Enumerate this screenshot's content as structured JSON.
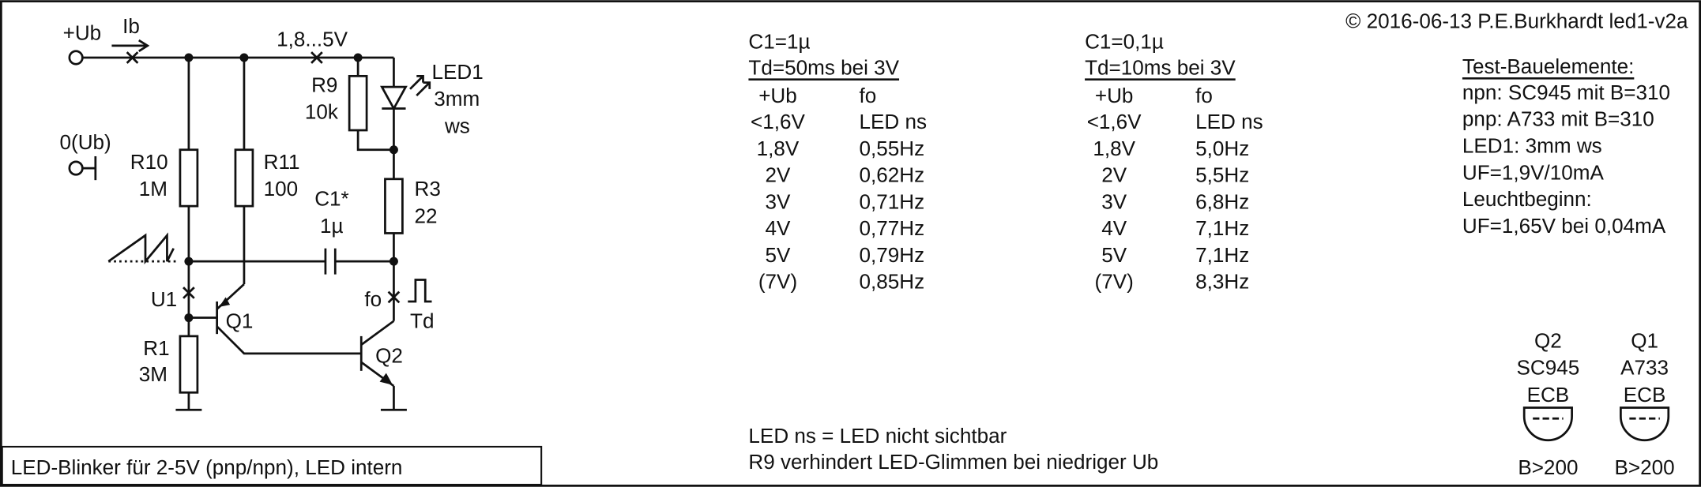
{
  "header": {
    "copyright": "© 2016-06-13 P.E.Burkhardt led1-v2a"
  },
  "title": "LED-Blinker für 2-5V (pnp/npn), LED intern",
  "circuit": {
    "labels": [
      "+Ub",
      "Ib",
      "1,8...5V",
      "LED1",
      "3mm",
      "ws",
      "R9",
      "10k",
      "0(Ub)",
      "R10",
      "1M",
      "R11",
      "100",
      "C1*",
      "1µ",
      "R3",
      "22",
      "U1",
      "Q1",
      "fo",
      "Td",
      "R1",
      "3M",
      "Q2"
    ]
  },
  "tables": [
    {
      "capacitor": "C1=1µ",
      "delay": "Td=50ms bei 3V",
      "columns": [
        "+Ub",
        "fo"
      ],
      "rows": [
        [
          "<1,6V",
          "LED ns"
        ],
        [
          "1,8V",
          "0,55Hz"
        ],
        [
          "2V",
          "0,62Hz"
        ],
        [
          "3V",
          "0,71Hz"
        ],
        [
          "4V",
          "0,77Hz"
        ],
        [
          "5V",
          "0,79Hz"
        ],
        [
          "(7V)",
          "0,85Hz"
        ]
      ]
    },
    {
      "capacitor": "C1=0,1µ",
      "delay": "Td=10ms bei 3V",
      "columns": [
        "+Ub",
        "fo"
      ],
      "rows": [
        [
          "<1,6V",
          "LED ns"
        ],
        [
          "1,8V",
          "5,0Hz"
        ],
        [
          "2V",
          "5,5Hz"
        ],
        [
          "3V",
          "6,8Hz"
        ],
        [
          "4V",
          "7,1Hz"
        ],
        [
          "5V",
          "7,1Hz"
        ],
        [
          "(7V)",
          "8,3Hz"
        ]
      ]
    }
  ],
  "components": {
    "heading": "Test-Bauelemente:",
    "lines": [
      "npn: SC945 mit B=310",
      "pnp: A733 mit B=310",
      "LED1: 3mm ws",
      "UF=1,9V/10mA",
      "Leuchtbeginn:",
      "UF=1,65V bei 0,04mA"
    ]
  },
  "transistors": [
    {
      "name": "Q2",
      "type": "SC945",
      "pins": "ECB",
      "gain": "B>200"
    },
    {
      "name": "Q1",
      "type": "A733",
      "pins": "ECB",
      "gain": "B>200"
    }
  ],
  "notes": [
    "LED ns = LED nicht sichtbar",
    "R9 verhindert LED-Glimmen bei niedriger Ub"
  ]
}
